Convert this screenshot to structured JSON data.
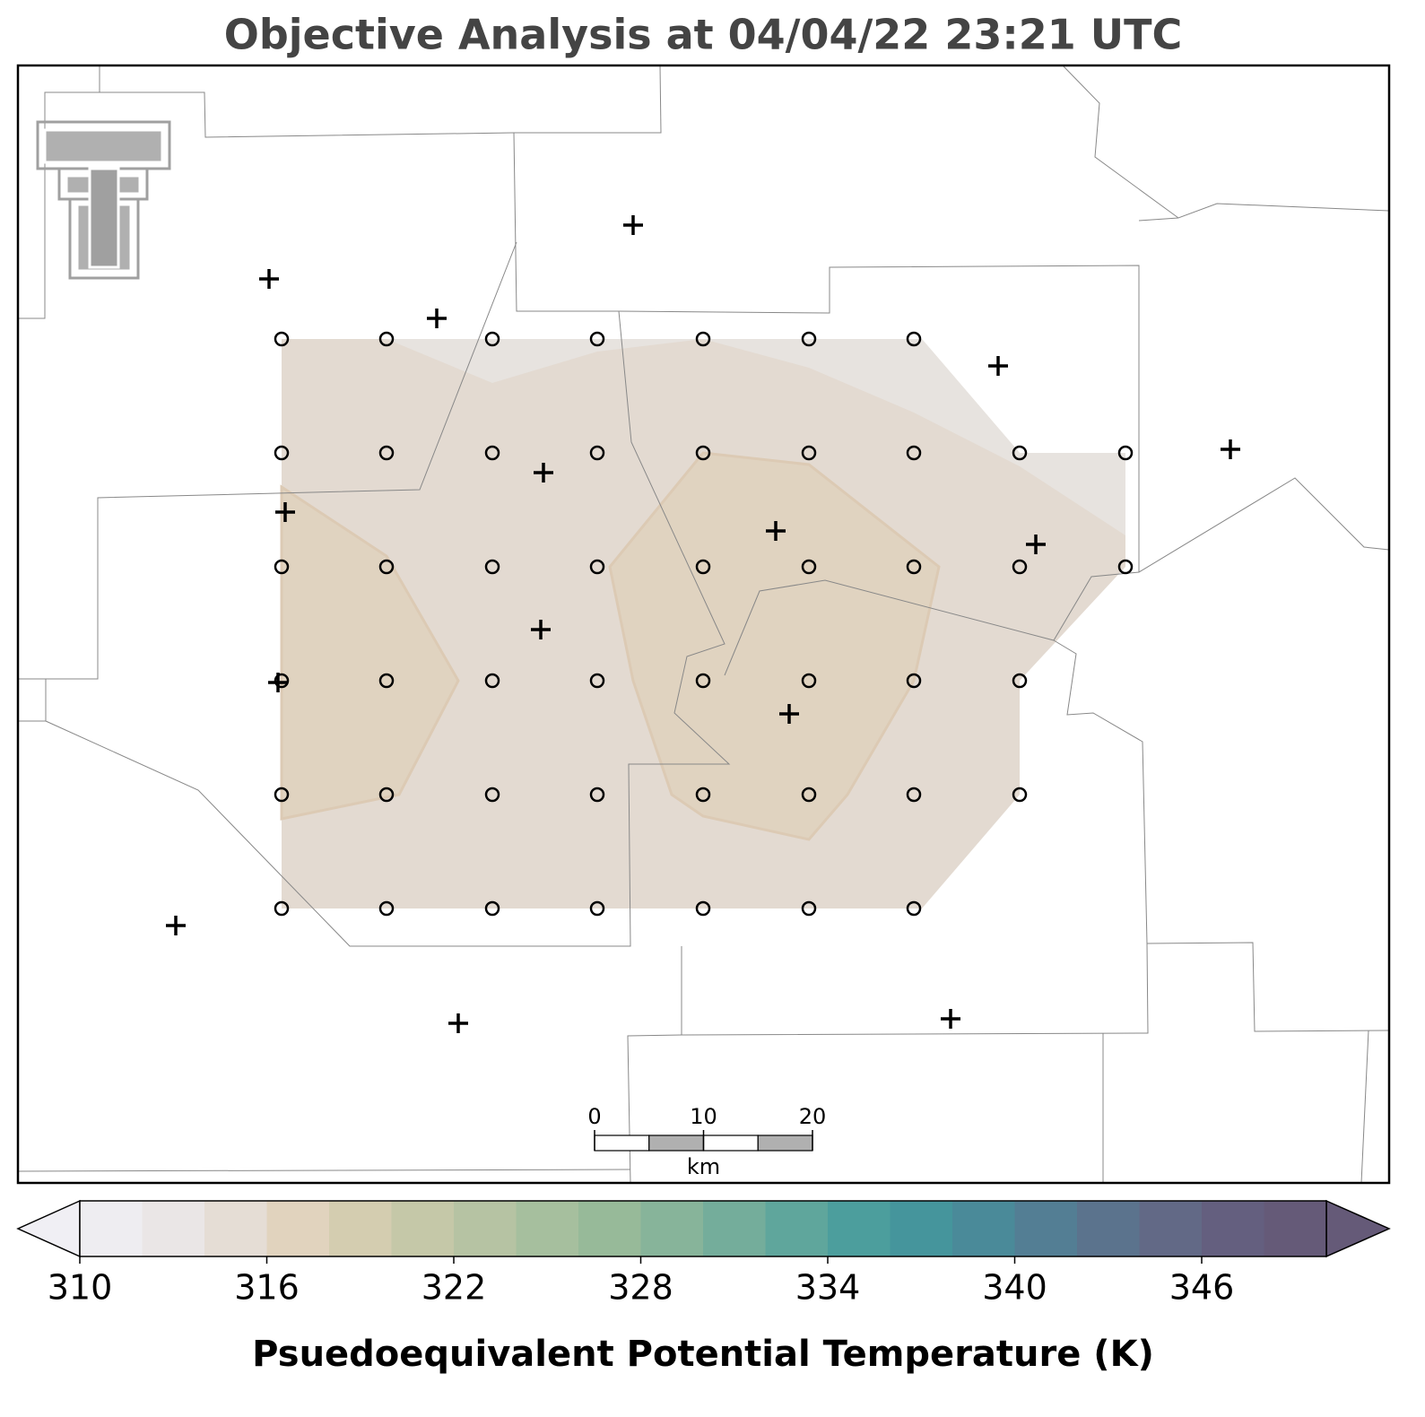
{
  "title": "Objective Analysis at 04/04/22 23:21 UTC",
  "colorbar": {
    "label": "Psuedoequivalent Potential Temperature (K)",
    "levels": [
      310,
      312,
      314,
      316,
      318,
      320,
      322,
      324,
      326,
      328,
      330,
      332,
      334,
      336,
      338,
      340,
      342,
      344,
      346,
      348,
      350
    ],
    "colors": [
      "#eeedf1",
      "#eae6e6",
      "#e5ddd5",
      "#e1d3be",
      "#d4cdb0",
      "#c5c8a8",
      "#b6c3a3",
      "#a6bf9e",
      "#97ba99",
      "#87b49a",
      "#74ad9b",
      "#5fa69c",
      "#4c9e9d",
      "#45959c",
      "#4a8a99",
      "#537e94",
      "#5b738d",
      "#626986",
      "#645f7f",
      "#655a78"
    ],
    "ticks": [
      310,
      316,
      322,
      328,
      334,
      340,
      346
    ]
  },
  "scale_bar": {
    "ticks": [
      0,
      10,
      20
    ],
    "unit": "km"
  }
}
